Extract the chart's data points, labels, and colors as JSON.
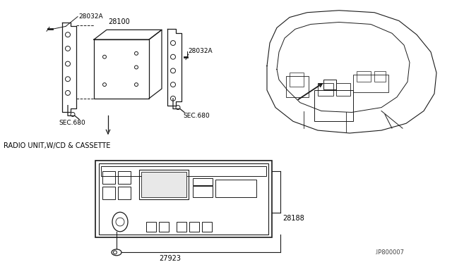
{
  "bg_color": "#ffffff",
  "line_color": "#1a1a1a",
  "fig_width": 6.4,
  "fig_height": 3.72,
  "dpi": 100,
  "labels": {
    "28032A_top": "28032A",
    "28100": "28100",
    "28032A_right": "28032A",
    "SEC680_left": "SEC.680",
    "SEC680_right": "SEC.680",
    "radio_title": "RADIO UNIT,W/CD & CASSETTE",
    "28188": "28188",
    "27923": "27923",
    "diagram_id": ".IP800007"
  }
}
